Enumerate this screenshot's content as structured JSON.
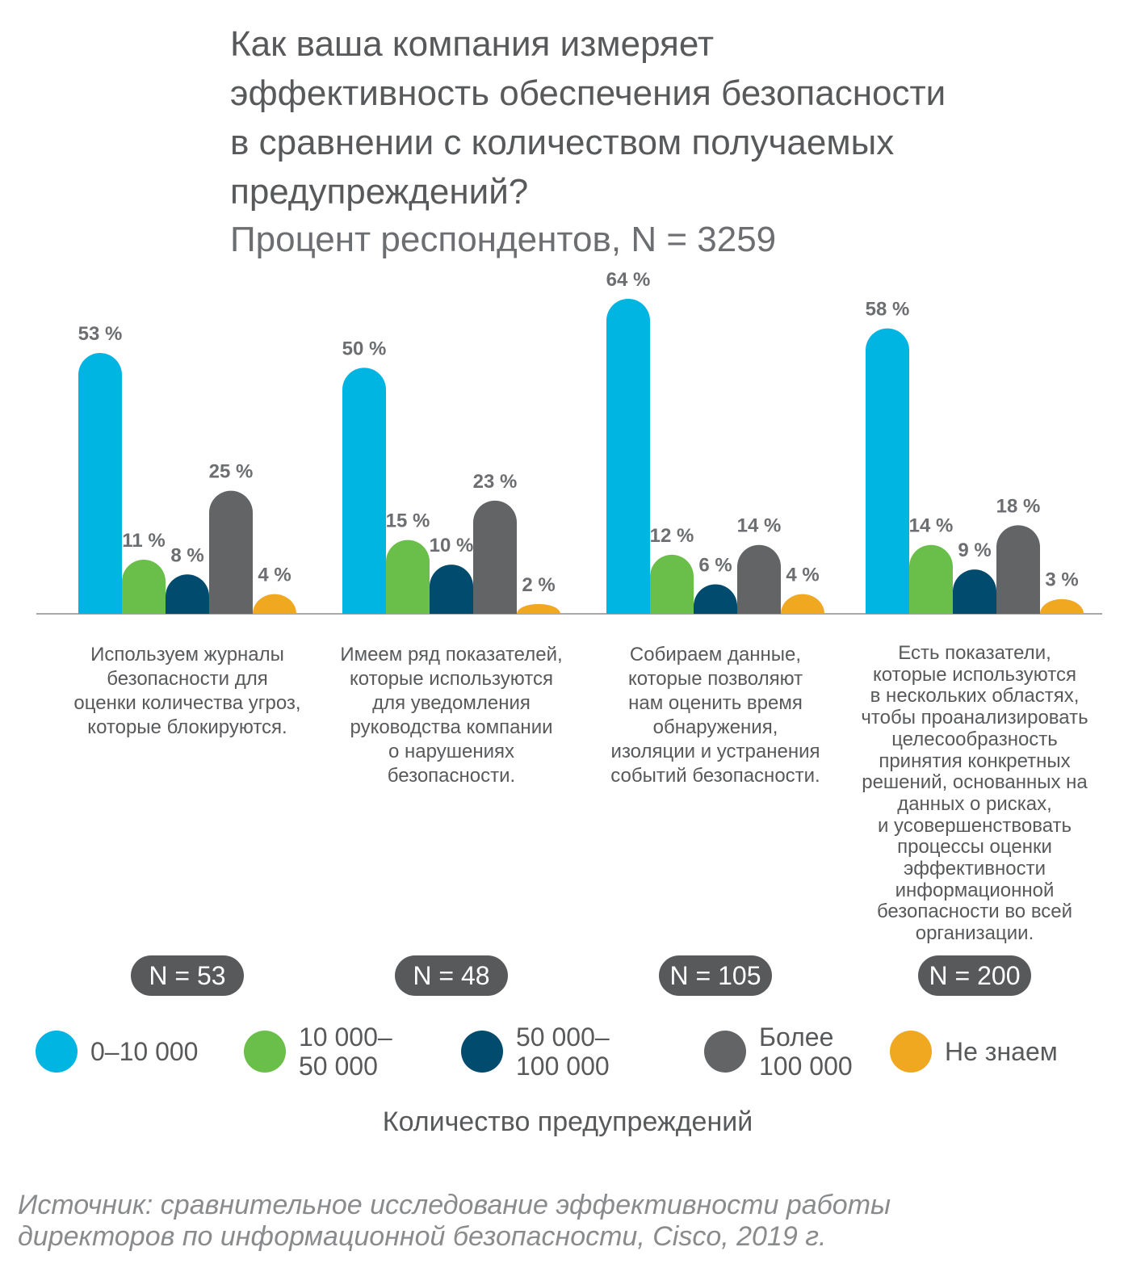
{
  "chart_data": {
    "type": "bar",
    "title": "Как ваша компания измеряет\nэффективность обеспечения безопасности\nв сравнении с количеством получаемых\nпредупреждений?",
    "subtitle": "Процент респондентов, N = 3259",
    "categories": [
      "Используем журналы\nбезопасности для\nоценки количества угроз,\nкоторые блокируются.",
      "Имеем ряд показателей,\nкоторые используются\nдля уведомления\nруководства компании\nо нарушениях\nбезопасности.",
      "Собираем данные,\nкоторые позволяют\nнам оценить время\nобнаружения,\nизоляции и устранения\nсобытий безопасности.",
      "Есть показатели,\nкоторые используются\nв нескольких областях,\nчтобы проанализировать\nцелесообразность\nпринятия конкретных\nрешений, основанных на\nданных о рисках,\nи усовершенствовать\nпроцессы оценки\nэффективности\nинформационной\nбезопасности во всей\nорганизации."
    ],
    "n_labels": [
      "N = 53",
      "N = 48",
      "N = 105",
      "N = 200"
    ],
    "series": [
      {
        "name": "0–10 000",
        "color": "#00b5e2",
        "values": [
          53,
          50,
          64,
          58
        ],
        "value_labels": [
          "53 %",
          "50 %",
          "64 %",
          "58 %"
        ]
      },
      {
        "name": "10 000–\n50 000",
        "color": "#6abf4b",
        "values": [
          11,
          15,
          12,
          14
        ],
        "value_labels": [
          "11 %",
          "15 %",
          "12 %",
          "14 %"
        ]
      },
      {
        "name": "50 000–\n100 000",
        "color": "#004b6e",
        "values": [
          8,
          10,
          6,
          9
        ],
        "value_labels": [
          "8 %",
          "10 %",
          "6 %",
          "9 %"
        ]
      },
      {
        "name": "Более\n100 000",
        "color": "#636466",
        "values": [
          25,
          23,
          14,
          18
        ],
        "value_labels": [
          "25 %",
          "23 %",
          "14 %",
          "18 %"
        ]
      },
      {
        "name": "Не знаем",
        "color": "#f0a821",
        "values": [
          4,
          2,
          4,
          3
        ],
        "value_labels": [
          "4 %",
          "2 %",
          "4 %",
          "3 %"
        ]
      }
    ],
    "ylim": [
      0,
      64
    ],
    "x_label": "Количество предупреждений",
    "source": "Источник: сравнительное исследование эффективности работы\nдиректоров по информационной безопасности, Cisco, 2019 г."
  }
}
